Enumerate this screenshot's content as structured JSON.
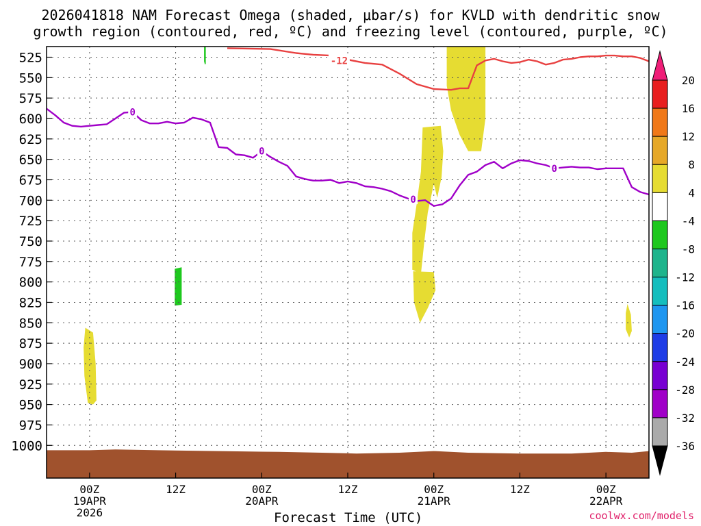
{
  "title": {
    "line1": "2026041818 NAM Forecast Omega (shaded, μbar/s) for KVLD with dendritic snow",
    "line2": "growth region (contoured, red, ºC) and freezing level (contoured, purple, ºC)"
  },
  "credit": "coolwx.com/models",
  "chart_data": {
    "type": "time-height",
    "title": "2026041818 NAM Forecast Omega (shaded, μbar/s) for KVLD with dendritic snow growth region (contoured, red, ºC) and freezing level (contoured, purple, ºC)",
    "xlabel": "Forecast Time (UTC)",
    "ylabel": "",
    "xlim_hours": [
      -5,
      65
    ],
    "ylim_hpa": [
      1040,
      512
    ],
    "y_ticks": [
      525,
      550,
      575,
      600,
      625,
      650,
      675,
      700,
      725,
      750,
      775,
      800,
      825,
      850,
      875,
      900,
      925,
      950,
      975,
      1000
    ],
    "x_ticks": [
      {
        "hour": 0,
        "labels": [
          "00Z",
          "19APR",
          "2026"
        ]
      },
      {
        "hour": 10,
        "labels": [
          "12Z"
        ]
      },
      {
        "hour": 20,
        "labels": [
          "00Z",
          "20APR"
        ]
      },
      {
        "hour": 30,
        "labels": [
          "12Z"
        ]
      },
      {
        "hour": 40,
        "labels": [
          "00Z",
          "21APR"
        ]
      },
      {
        "hour": 50,
        "labels": [
          "12Z"
        ]
      },
      {
        "hour": 60,
        "labels": [
          "00Z",
          "22APR"
        ]
      }
    ],
    "contours": [
      {
        "name": "freezing-level",
        "label": "0",
        "color": "#a000c8",
        "label_points": [
          [
            5,
            592
          ],
          [
            20,
            640
          ],
          [
            37.6,
            699
          ],
          [
            54,
            661
          ]
        ],
        "points": [
          [
            -5,
            588
          ],
          [
            -4,
            596
          ],
          [
            -3,
            605
          ],
          [
            -2,
            609
          ],
          [
            -1,
            610
          ],
          [
            0,
            609
          ],
          [
            1,
            608
          ],
          [
            2,
            607
          ],
          [
            3,
            600
          ],
          [
            4,
            593
          ],
          [
            5,
            592
          ],
          [
            6,
            602
          ],
          [
            7,
            606
          ],
          [
            8,
            606
          ],
          [
            9,
            604
          ],
          [
            10,
            606
          ],
          [
            11,
            605
          ],
          [
            12,
            599
          ],
          [
            13,
            601
          ],
          [
            14,
            605
          ],
          [
            15,
            635
          ],
          [
            16,
            636
          ],
          [
            17,
            644
          ],
          [
            18,
            645
          ],
          [
            19,
            648
          ],
          [
            20,
            640
          ],
          [
            21,
            647
          ],
          [
            22,
            653
          ],
          [
            23,
            658
          ],
          [
            24,
            671
          ],
          [
            25,
            674
          ],
          [
            26,
            676
          ],
          [
            27,
            676
          ],
          [
            28,
            675
          ],
          [
            29,
            679
          ],
          [
            30,
            677
          ],
          [
            31,
            679
          ],
          [
            32,
            683
          ],
          [
            33,
            684
          ],
          [
            34,
            686
          ],
          [
            35,
            689
          ],
          [
            36,
            694
          ],
          [
            37,
            698
          ],
          [
            37.6,
            699
          ],
          [
            38,
            701
          ],
          [
            39,
            700
          ],
          [
            40,
            707
          ],
          [
            41,
            705
          ],
          [
            42,
            698
          ],
          [
            43,
            682
          ],
          [
            44,
            669
          ],
          [
            45,
            665
          ],
          [
            46,
            657
          ],
          [
            47,
            653
          ],
          [
            48,
            661
          ],
          [
            49,
            655
          ],
          [
            50,
            651
          ],
          [
            51,
            652
          ],
          [
            52,
            655
          ],
          [
            53,
            657
          ],
          [
            54,
            661
          ],
          [
            55,
            660
          ],
          [
            56,
            659
          ],
          [
            57,
            660
          ],
          [
            58,
            660
          ],
          [
            59,
            662
          ],
          [
            60,
            661
          ],
          [
            61,
            661
          ],
          [
            62,
            661
          ],
          [
            63,
            684
          ],
          [
            64,
            690
          ],
          [
            65,
            693
          ]
        ]
      },
      {
        "name": "dgz-minus-12",
        "label": "-12",
        "color": "#e84040",
        "label_points": [
          [
            29,
            529
          ]
        ],
        "points": [
          [
            16,
            514
          ],
          [
            21,
            515
          ],
          [
            24,
            520
          ],
          [
            26,
            522
          ],
          [
            28,
            523
          ],
          [
            30,
            528
          ],
          [
            32,
            532
          ],
          [
            34,
            534
          ],
          [
            36,
            545
          ],
          [
            38,
            558
          ],
          [
            40,
            564
          ],
          [
            42,
            565
          ],
          [
            43,
            563
          ],
          [
            44,
            563
          ],
          [
            45,
            535
          ],
          [
            46,
            529
          ],
          [
            47,
            527
          ],
          [
            48,
            530
          ],
          [
            49,
            532
          ],
          [
            50,
            531
          ],
          [
            51,
            528
          ],
          [
            52,
            530
          ],
          [
            53,
            534
          ],
          [
            54,
            532
          ],
          [
            55,
            528
          ],
          [
            56,
            527
          ],
          [
            57,
            525
          ],
          [
            58,
            524
          ],
          [
            59,
            524
          ],
          [
            60,
            523
          ],
          [
            61,
            523
          ],
          [
            62,
            524
          ],
          [
            63,
            524
          ],
          [
            64,
            526
          ],
          [
            65,
            530
          ]
        ]
      }
    ],
    "shading": [
      {
        "value_range": [
          4,
          8
        ],
        "color": "#e6dc32",
        "description": "weak ascent"
      },
      {
        "value_range": [
          -8,
          -4
        ],
        "color": "#1ec81e",
        "description": "weak descent"
      }
    ],
    "colorbar": {
      "ticks": [
        20,
        16,
        12,
        8,
        4,
        -4,
        -8,
        -12,
        -16,
        -20,
        -24,
        -28,
        -32,
        -36
      ],
      "colors": [
        "#e81e1e",
        "#f07818",
        "#e6a828",
        "#e6dc32",
        "#ffffff",
        "#1ec81e",
        "#1eb48c",
        "#14bebe",
        "#1e96f0",
        "#1e3ce6",
        "#7800d2",
        "#a000c8",
        "#aaaaaa"
      ],
      "upper_arrow": "#f01e78",
      "lower_arrow": "#000000"
    },
    "terrain_color": "#a0522d",
    "surface_pressure_hpa": 1008
  }
}
